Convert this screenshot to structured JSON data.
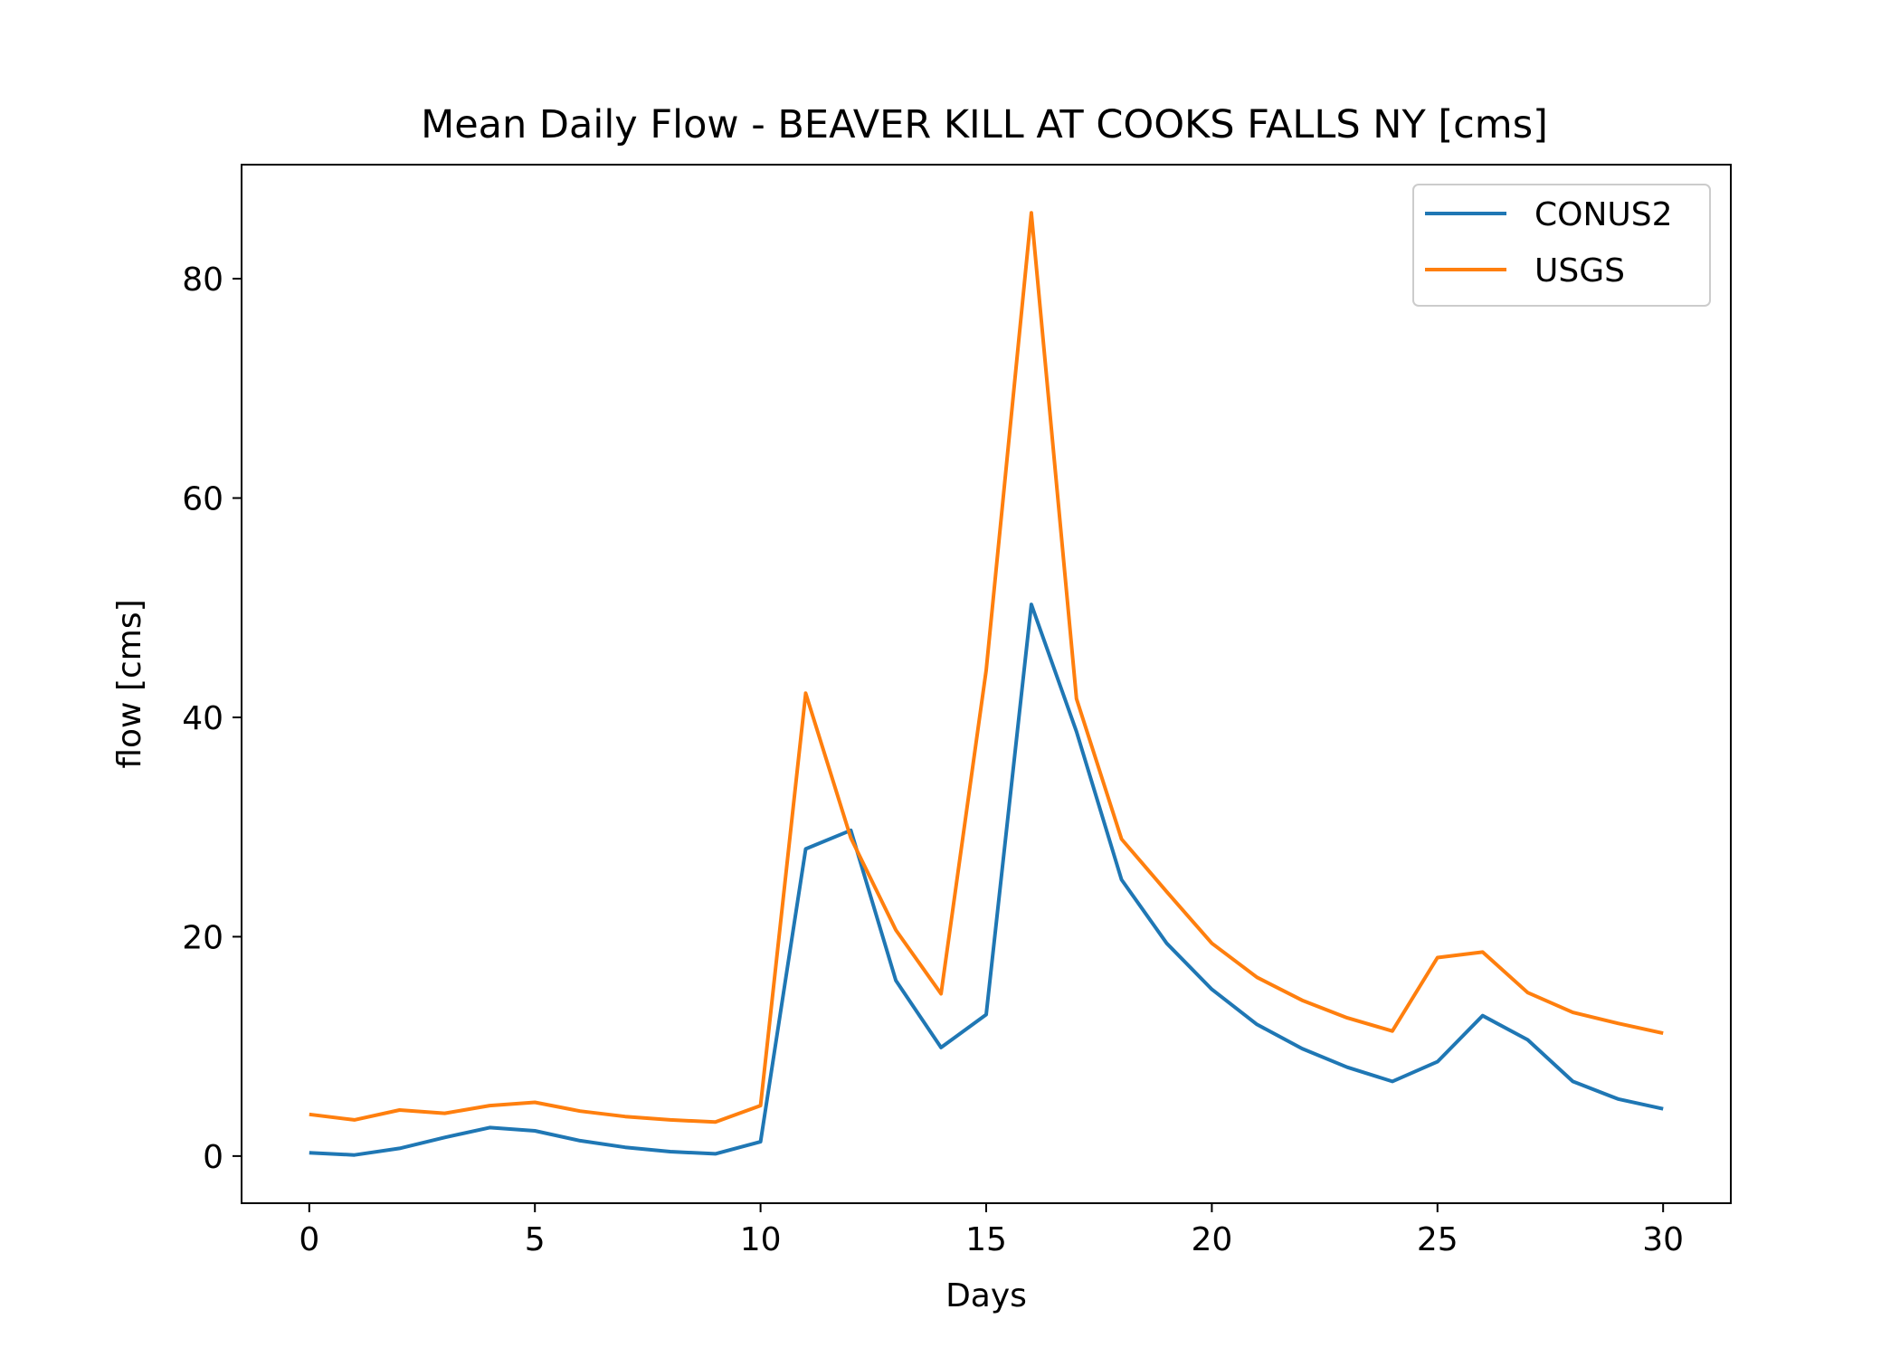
{
  "chart_data": {
    "type": "line",
    "title": "Mean Daily Flow - BEAVER KILL AT COOKS FALLS NY [cms]",
    "xlabel": "Days",
    "ylabel": "flow [cms]",
    "xlim": [
      -1.5,
      31.5
    ],
    "ylim": [
      -4.3,
      90.4
    ],
    "xticks": [
      0,
      5,
      10,
      15,
      20,
      25,
      30
    ],
    "yticks": [
      0,
      20,
      40,
      60,
      80
    ],
    "grid": false,
    "legend": "top-right",
    "x": [
      0,
      1,
      2,
      3,
      4,
      5,
      6,
      7,
      8,
      9,
      10,
      11,
      12,
      13,
      14,
      15,
      16,
      17,
      18,
      19,
      20,
      21,
      22,
      23,
      24,
      25,
      26,
      27,
      28,
      29,
      30
    ],
    "series": [
      {
        "name": "CONUS2",
        "color": "#1f77b4",
        "values": [
          0.3,
          0.1,
          0.7,
          1.7,
          2.6,
          2.3,
          1.4,
          0.8,
          0.4,
          0.2,
          1.3,
          28.0,
          29.7,
          16.0,
          9.9,
          12.9,
          50.3,
          38.7,
          25.2,
          19.4,
          15.2,
          12.0,
          9.8,
          8.1,
          6.8,
          8.6,
          12.8,
          10.6,
          6.8,
          5.2,
          4.3
        ]
      },
      {
        "name": "USGS",
        "color": "#ff7f0e",
        "values": [
          3.8,
          3.3,
          4.2,
          3.9,
          4.6,
          4.9,
          4.1,
          3.6,
          3.3,
          3.1,
          4.6,
          42.2,
          29.0,
          20.6,
          14.8,
          44.3,
          86.0,
          41.7,
          28.9,
          24.1,
          19.4,
          16.3,
          14.2,
          12.6,
          11.4,
          18.1,
          18.6,
          14.9,
          13.1,
          12.1,
          11.2
        ]
      }
    ]
  }
}
